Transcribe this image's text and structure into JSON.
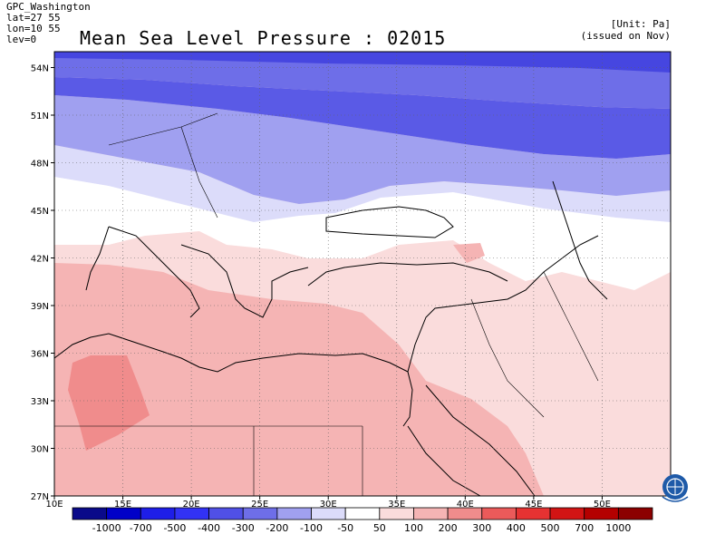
{
  "header": {
    "source": "GPC_Washington",
    "lat": "lat=27 55",
    "lon": "lon=10 55",
    "lev": "lev=0",
    "title": "Mean Sea Level Pressure : 02015",
    "unit": "[Unit: Pa]",
    "issued": "(issued on Nov)"
  },
  "chart_data": {
    "type": "heatmap",
    "title": "Mean Sea Level Pressure : 02015",
    "unit": "Pa",
    "x_axis": {
      "range": [
        10,
        55
      ],
      "ticks": [
        "10E",
        "15E",
        "20E",
        "25E",
        "30E",
        "35E",
        "40E",
        "45E",
        "50E"
      ],
      "tick_values": [
        10,
        15,
        20,
        25,
        30,
        35,
        40,
        45,
        50
      ]
    },
    "y_axis": {
      "range": [
        27,
        55
      ],
      "ticks": [
        "27N",
        "30N",
        "33N",
        "36N",
        "39N",
        "42N",
        "45N",
        "48N",
        "51N",
        "54N"
      ],
      "tick_values": [
        27,
        30,
        33,
        36,
        39,
        42,
        45,
        48,
        51,
        54
      ]
    },
    "grid": true,
    "colorbar": {
      "labels": [
        "-1000",
        "-700",
        "-500",
        "-400",
        "-300",
        "-200",
        "-100",
        "-50",
        "50",
        "100",
        "200",
        "300",
        "400",
        "500",
        "700",
        "1000"
      ],
      "colors": [
        "#0a0a8a",
        "#0000c8",
        "#1e1ee8",
        "#3232f5",
        "#5050e6",
        "#6e6ee8",
        "#a0a0f0",
        "#dcdcfa",
        "#ffffff",
        "#fadcdc",
        "#f5b4b4",
        "#f08c8c",
        "#eb5a5a",
        "#e63232",
        "#d21414",
        "#b40000",
        "#8c0000"
      ]
    },
    "regions": [
      {
        "band": "-300 to -200",
        "color": "#6e6ee8",
        "area": "northern edge 53-55N"
      },
      {
        "band": "-200 to -100",
        "color": "#a0a0f0",
        "area": "about 48-53N"
      },
      {
        "band": "-100 to -50",
        "color": "#dcdcfa",
        "area": "about 45-48N"
      },
      {
        "band": "-50 to 50",
        "color": "#ffffff",
        "area": "about 42-45N"
      },
      {
        "band": "50 to 100",
        "color": "#fadcdc",
        "area": "Turkey, eastern Mediterranean, Iraq"
      },
      {
        "band": "100 to 200",
        "color": "#f5b4b4",
        "area": "central Mediterranean, North Africa, Arabia"
      },
      {
        "band": "200 to 300",
        "color": "#f08c8c",
        "area": "Libya near 30-36N, 12-17E"
      }
    ]
  }
}
